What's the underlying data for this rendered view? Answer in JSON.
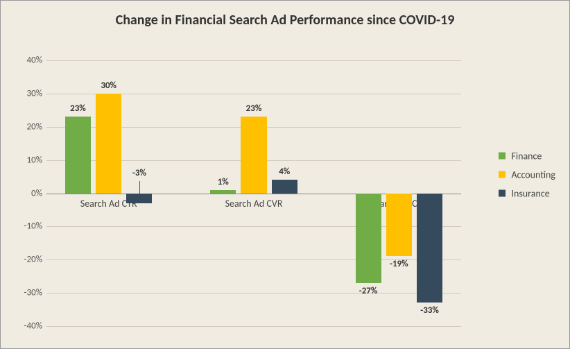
{
  "chart": {
    "type": "bar",
    "title": "Change in Financial Search Ad Performance since COVID-19",
    "title_fontsize": 20,
    "background_color": "#f0ece1",
    "grid_color": "#cfcabb",
    "zero_line_color": "#888888",
    "label_fontsize": 13,
    "categories": [
      "Search Ad CTR",
      "Search Ad CVR",
      "Search Ad CPC"
    ],
    "series": [
      {
        "name": "Finance",
        "color": "#70ad47",
        "values": [
          23,
          1,
          -27
        ]
      },
      {
        "name": "Accounting",
        "color": "#ffc000",
        "values": [
          30,
          23,
          -19
        ]
      },
      {
        "name": "Insurance",
        "color": "#364a5e",
        "values": [
          -3,
          4,
          -33
        ]
      }
    ],
    "yaxis": {
      "min": -40,
      "max": 40,
      "step": 10,
      "format": "percent"
    },
    "bar_width_pct": 6.2,
    "group_gap_pct": 14,
    "inner_gap_pct": 1.2,
    "label_text_color": "#333333"
  }
}
